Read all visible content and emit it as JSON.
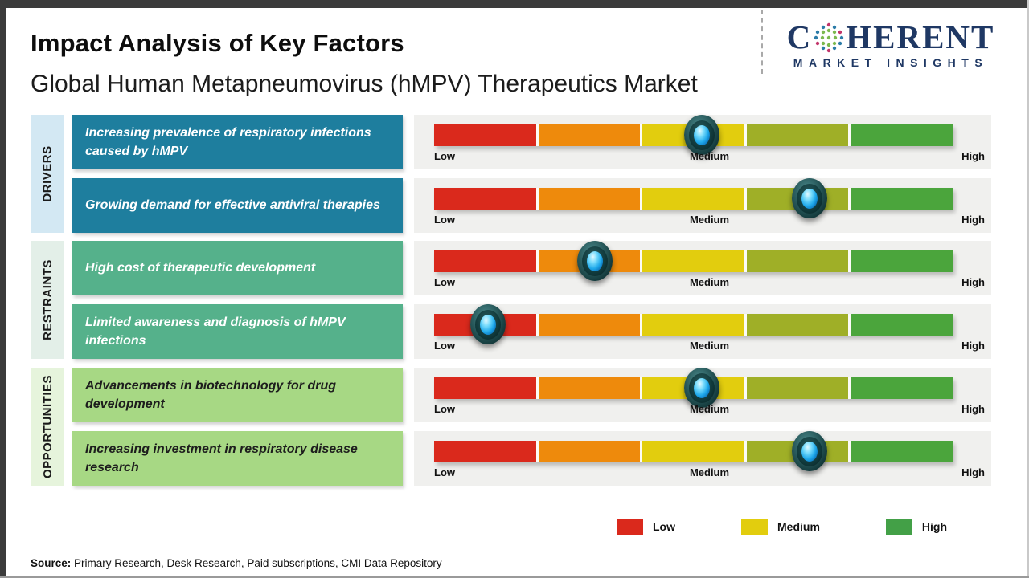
{
  "header": {
    "title": "Impact Analysis of Key Factors",
    "subtitle": "Global Human Metapneumovirus (hMPV) Therapeutics Market",
    "logo": {
      "brand_c": "C",
      "brand_rest": "HERENT",
      "tagline": "MARKET INSIGHTS"
    }
  },
  "chart_data": {
    "type": "bar",
    "title": "Impact Analysis of Key Factors",
    "subtitle": "Global Human Metapneumovirus (hMPV) Therapeutics Market",
    "scale": {
      "min_label": "Low",
      "mid_label": "Medium",
      "max_label": "High",
      "range_pct": [
        0,
        100
      ]
    },
    "scale_labels": [
      "Low",
      "Medium",
      "High"
    ],
    "segment_colors": [
      "#da291c",
      "#ee8a0c",
      "#e2cd0e",
      "#9faf27",
      "#4ba53c"
    ],
    "groups": [
      {
        "name": "DRIVERS",
        "panel_color": "#d3e8f3",
        "box_color": "#1e7e9e",
        "factors": [
          {
            "label": "Increasing prevalence of respiratory infections caused by hMPV",
            "impact": "Medium",
            "position_pct": 51.6
          },
          {
            "label": "Growing demand for effective antiviral therapies",
            "impact": "Medium-High",
            "position_pct": 72.4
          }
        ]
      },
      {
        "name": "RESTRAINTS",
        "panel_color": "#e3efe8",
        "box_color": "#55b18b",
        "factors": [
          {
            "label": "High cost of therapeutic development",
            "impact": "Low-Medium",
            "position_pct": 31.0
          },
          {
            "label": "Limited awareness and diagnosis of hMPV infections",
            "impact": "Low",
            "position_pct": 10.4
          }
        ]
      },
      {
        "name": "OPPORTUNITIES",
        "panel_color": "#e6f4dc",
        "box_color": "#a7d884",
        "factors": [
          {
            "label": "Advancements in biotechnology for drug development",
            "impact": "Medium",
            "position_pct": 51.6
          },
          {
            "label": "Increasing investment in respiratory disease research",
            "impact": "Medium-High",
            "position_pct": 72.4
          }
        ]
      }
    ]
  },
  "legend": {
    "items": [
      {
        "label": "Low",
        "color": "#da291c"
      },
      {
        "label": "Medium",
        "color": "#e2cd0e"
      },
      {
        "label": "High",
        "color": "#43a047"
      }
    ]
  },
  "source": {
    "prefix": "Source:",
    "text": " Primary Research, Desk Research, Paid subscriptions, CMI Data Repository"
  }
}
